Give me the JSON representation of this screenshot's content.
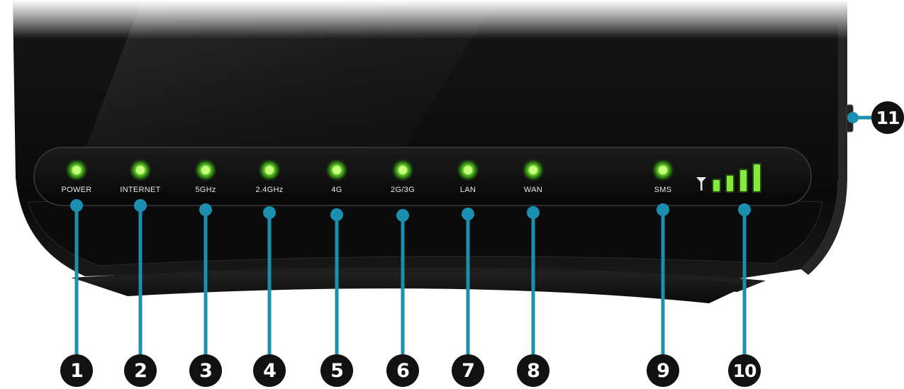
{
  "colors": {
    "led_green": "#6fdc2a",
    "leader_teal": "#1b8fb0",
    "device_body": "#0c0c0c",
    "callout_bg": "#111111"
  },
  "leds": [
    {
      "label": "POWER",
      "number": "1"
    },
    {
      "label": "INTERNET",
      "number": "2"
    },
    {
      "label": "5GHz",
      "number": "3"
    },
    {
      "label": "2.4GHz",
      "number": "4"
    },
    {
      "label": "4G",
      "number": "5"
    },
    {
      "label": "2G/3G",
      "number": "6"
    },
    {
      "label": "LAN",
      "number": "7"
    },
    {
      "label": "WAN",
      "number": "8"
    },
    {
      "label": "SMS",
      "number": "9"
    }
  ],
  "signal": {
    "icon": "antenna-icon",
    "bars": 4,
    "number": "10"
  },
  "side_button": {
    "number": "11"
  }
}
